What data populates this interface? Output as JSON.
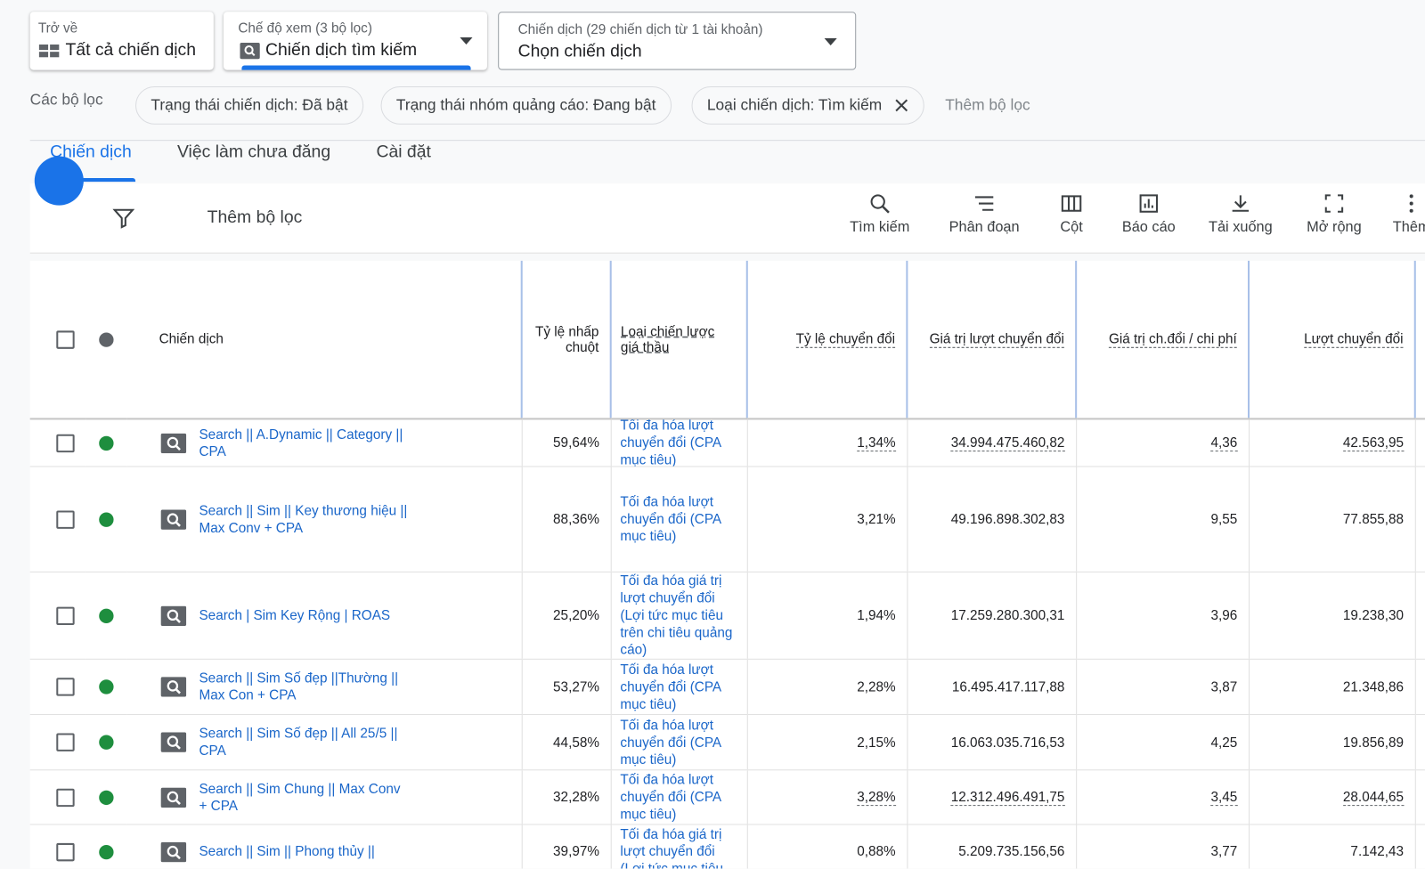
{
  "header": {
    "back": {
      "label": "Trở về",
      "value": "Tất cả chiến dịch"
    },
    "view": {
      "label": "Chế độ xem (3 bộ lọc)",
      "value": "Chiến dịch tìm kiếm"
    },
    "campaign": {
      "label": "Chiến dịch (29 chiến dịch từ 1 tài khoản)",
      "value": "Chọn chiến dịch"
    }
  },
  "filters": {
    "label": "Các bộ lọc",
    "chips": [
      "Trạng thái chiến dịch: Đã bật",
      "Trạng thái nhóm quảng cáo: Đang bật",
      "Loại chiến dịch: Tìm kiếm"
    ],
    "add": "Thêm bộ lọc"
  },
  "tabs": [
    "Chiến dịch",
    "Việc làm chưa đăng",
    "Cài đặt"
  ],
  "toolbar": {
    "add_filter": "Thêm bộ lọc",
    "actions": [
      "Tìm kiếm",
      "Phân đoạn",
      "Cột",
      "Báo cáo",
      "Tải xuống",
      "Mở rộng",
      "Thêm"
    ]
  },
  "table": {
    "columns": [
      "Chiến dịch",
      "Tỷ lệ nhấp chuột",
      "Loại chiến lược giá thầu",
      "Tỷ lệ chuyển đổi",
      "Giá trị lượt chuyển đổi",
      "Giá trị ch.đổi / chi phí",
      "Lượt chuyển đổi"
    ],
    "rows": [
      [
        "Search || A.Dynamic || Category || CPA",
        "59,64%",
        "Tối đa hóa lượt chuyển đổi (CPA mục tiêu)",
        "1,34%",
        "34.994.475.460,82",
        "4,36",
        "42.563,95"
      ],
      [
        "Search || Sim || Key thương hiệu || Max Conv + CPA",
        "88,36%",
        "Tối đa hóa lượt chuyển đổi (CPA mục tiêu)",
        "3,21%",
        "49.196.898.302,83",
        "9,55",
        "77.855,88"
      ],
      [
        "Search | Sim Key Rộng | ROAS",
        "25,20%",
        "Tối đa hóa giá trị lượt chuyển đổi (Lợi tức mục tiêu trên chi tiêu quảng cáo)",
        "1,94%",
        "17.259.280.300,31",
        "3,96",
        "19.238,30"
      ],
      [
        "Search || Sim Số đẹp ||Thường || Max Con + CPA",
        "53,27%",
        "Tối đa hóa lượt chuyển đổi (CPA mục tiêu)",
        "2,28%",
        "16.495.417.117,88",
        "3,87",
        "21.348,86"
      ],
      [
        "Search || Sim Số đẹp || All 25/5 || CPA",
        "44,58%",
        "Tối đa hóa lượt chuyển đổi (CPA mục tiêu)",
        "2,15%",
        "16.063.035.716,53",
        "4,25",
        "19.856,89"
      ],
      [
        "Search || Sim Chung || Max Conv + CPA",
        "32,28%",
        "Tối đa hóa lượt chuyển đổi (CPA mục tiêu)",
        "3,28%",
        "12.312.496.491,75",
        "3,45",
        "28.044,65"
      ],
      [
        "Search || Sim || Phong thủy ||",
        "39,97%",
        "Tối đa hóa giá trị lượt chuyển đổi (Lợi tức mục tiêu",
        "0,88%",
        "5.209.735.156,56",
        "3,77",
        "7.142,43"
      ]
    ]
  }
}
